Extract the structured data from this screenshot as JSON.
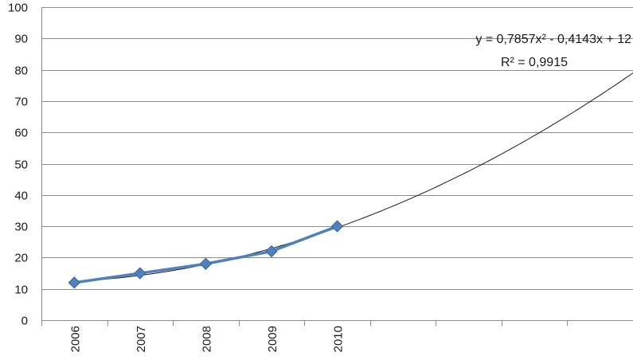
{
  "chart_data": {
    "type": "line",
    "x_axis": {
      "labels": [
        "2006",
        "2007",
        "2008",
        "2009",
        "2010",
        "",
        "",
        "",
        ""
      ],
      "slots": 9
    },
    "y_axis": {
      "min": 0,
      "max": 100,
      "step": 10
    },
    "grid": "horizontal",
    "legend": "none",
    "series": [
      {
        "x": [
          1,
          2,
          3,
          4,
          5
        ],
        "values": [
          12,
          15,
          18,
          22,
          30
        ],
        "color": "#4f81bd",
        "marker": "diamond"
      }
    ],
    "trendline": {
      "kind": "polynomial-2",
      "coefficients": {
        "a": 0.7857,
        "b": -0.4143,
        "c": 12
      },
      "x_from": 1,
      "x_to": 9.5,
      "color": "#1a1a1a",
      "equation": "y = 0,7857x² - 0,4143x + 12",
      "r_squared": "R² = 0,9915"
    }
  }
}
